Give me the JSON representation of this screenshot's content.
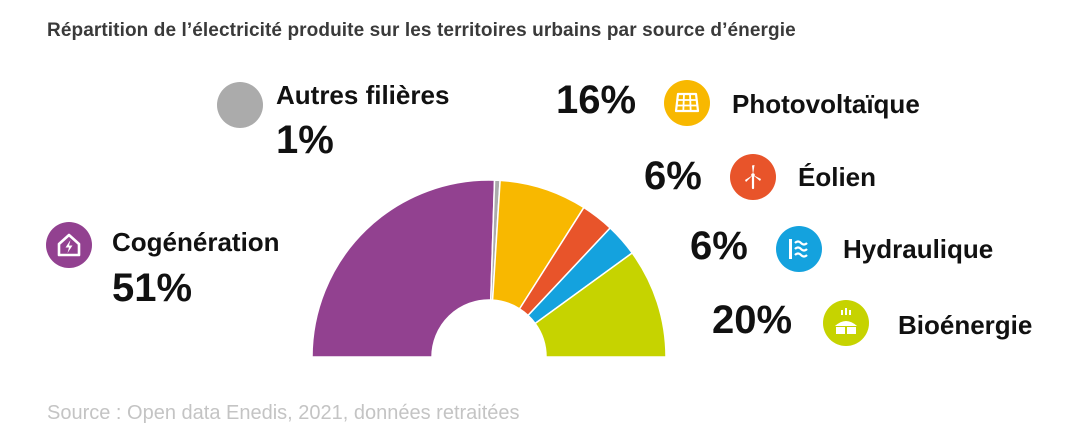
{
  "chart_data": {
    "type": "pie",
    "title": "Répartition de l’électricité produite sur les territoires urbains par source d’énergie",
    "slices": [
      {
        "label": "Cogénération",
        "value": 51,
        "value_label": "51%",
        "color": "#924190",
        "icon": "house-lightning-icon"
      },
      {
        "label": "Autres filières",
        "value": 1,
        "value_label": "1%",
        "color": "#ababab",
        "icon": "grey-dot-icon"
      },
      {
        "label": "Photovoltaïque",
        "value": 16,
        "value_label": "16%",
        "color": "#f8b800",
        "icon": "solar-panel-icon"
      },
      {
        "label": "Éolien",
        "value": 6,
        "value_label": "6%",
        "color": "#e8542a",
        "icon": "wind-turbine-icon"
      },
      {
        "label": "Hydraulique",
        "value": 6,
        "value_label": "6%",
        "color": "#14a2de",
        "icon": "water-waves-icon"
      },
      {
        "label": "Bioénergie",
        "value": 20,
        "value_label": "20%",
        "color": "#c6d300",
        "icon": "biomass-plant-icon"
      }
    ]
  },
  "source": "Source : Open data Enedis, 2021, données retraitées"
}
